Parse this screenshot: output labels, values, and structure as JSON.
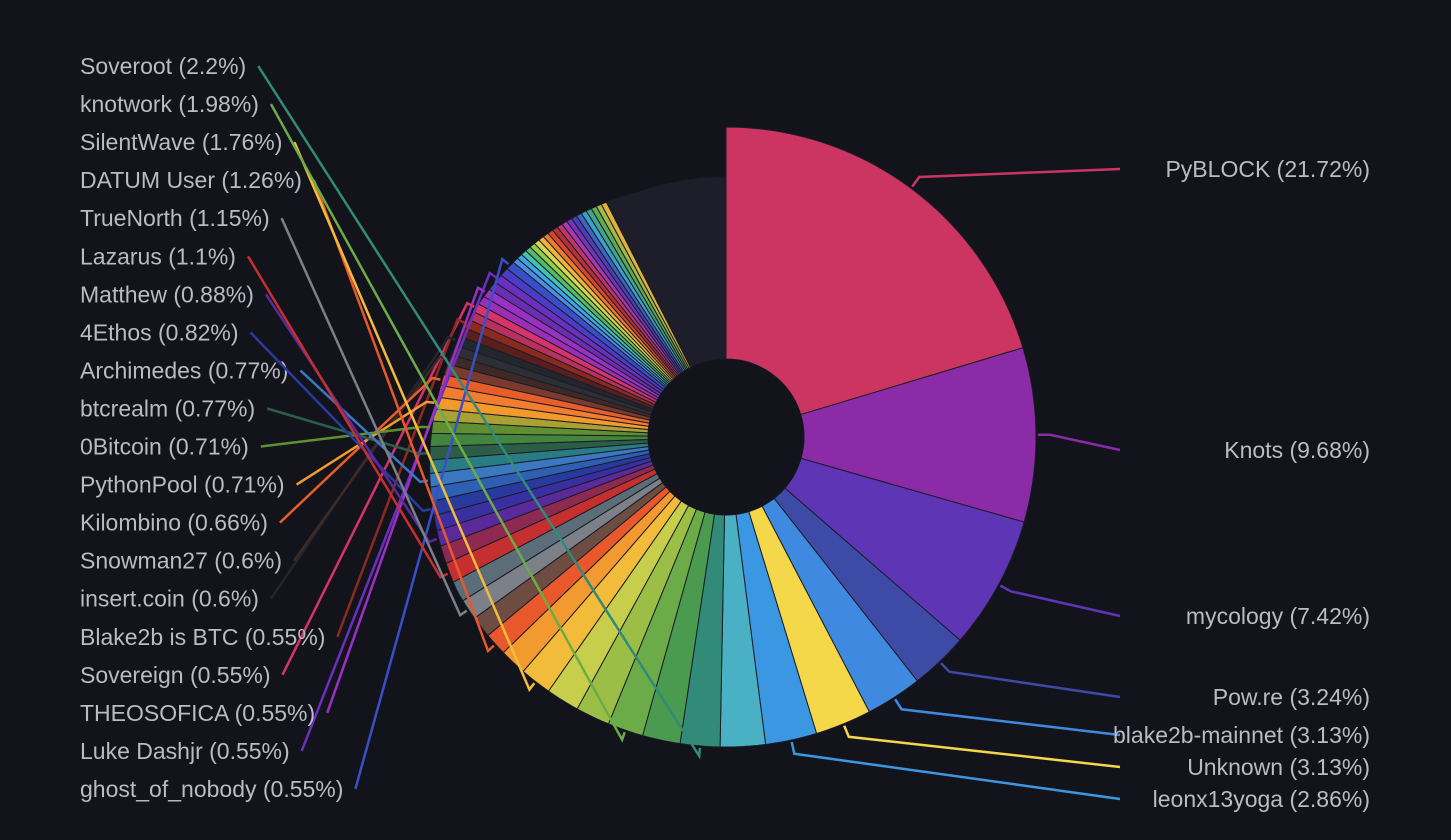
{
  "chart_data": {
    "type": "pie",
    "style": "donut",
    "colors": {
      "background": "#12131b",
      "label_text": "#b9bcc4",
      "slice_border": "#1b1c25",
      "other_slice": "#1d1e2a"
    },
    "labeled_slices": [
      {
        "name": "PyBLOCK",
        "pct_label": "21.72%",
        "value": 21.72,
        "color": "#cc3561"
      },
      {
        "name": "Knots",
        "pct_label": "9.68%",
        "value": 9.68,
        "color": "#8b2ba8"
      },
      {
        "name": "mycology",
        "pct_label": "7.42%",
        "value": 7.42,
        "color": "#5e35b5"
      },
      {
        "name": "Pow.re",
        "pct_label": "3.24%",
        "value": 3.24,
        "color": "#3e4ba6"
      },
      {
        "name": "blake2b-mainnet",
        "pct_label": "3.13%",
        "value": 3.13,
        "color": "#3f8ae0"
      },
      {
        "name": "Unknown",
        "pct_label": "3.13%",
        "value": 3.13,
        "color": "#f5d84a"
      },
      {
        "name": "leonx13yoga",
        "pct_label": "2.86%",
        "value": 2.86,
        "color": "#3c97e3"
      },
      {
        "name": "",
        "pct_label": "",
        "value": 2.5,
        "color": "#4ab1c4"
      },
      {
        "name": "Soveroot",
        "pct_label": "2.2%",
        "value": 2.2,
        "color": "#328a79"
      },
      {
        "name": "",
        "pct_label": "",
        "value": 2.1,
        "color": "#4a9b4f"
      },
      {
        "name": "knotwork",
        "pct_label": "1.98%",
        "value": 1.98,
        "color": "#6cac48"
      },
      {
        "name": "",
        "pct_label": "",
        "value": 1.9,
        "color": "#9bbf46"
      },
      {
        "name": "",
        "pct_label": "",
        "value": 1.85,
        "color": "#c7ce4c"
      },
      {
        "name": "SilentWave",
        "pct_label": "1.76%",
        "value": 1.76,
        "color": "#f2bb3a"
      },
      {
        "name": "",
        "pct_label": "",
        "value": 1.5,
        "color": "#f29a30"
      },
      {
        "name": "DATUM User",
        "pct_label": "1.26%",
        "value": 1.26,
        "color": "#e8582b"
      },
      {
        "name": "",
        "pct_label": "",
        "value": 1.2,
        "color": "#6d4c41"
      },
      {
        "name": "TrueNorth",
        "pct_label": "1.15%",
        "value": 1.15,
        "color": "#7b8089"
      },
      {
        "name": "",
        "pct_label": "",
        "value": 1.15,
        "color": "#5b6d78"
      },
      {
        "name": "Lazarus",
        "pct_label": "1.1%",
        "value": 1.1,
        "color": "#c62f2f"
      },
      {
        "name": "",
        "pct_label": "",
        "value": 1.0,
        "color": "#8e2a52"
      },
      {
        "name": "Matthew",
        "pct_label": "0.88%",
        "value": 0.88,
        "color": "#5b2a9a"
      },
      {
        "name": "",
        "pct_label": "",
        "value": 0.85,
        "color": "#3a2fa0"
      },
      {
        "name": "4Ethos",
        "pct_label": "0.82%",
        "value": 0.82,
        "color": "#283a9e"
      },
      {
        "name": "",
        "pct_label": "",
        "value": 0.8,
        "color": "#2e5fb3"
      },
      {
        "name": "Archimedes",
        "pct_label": "0.77%",
        "value": 0.77,
        "color": "#3a78c2"
      },
      {
        "name": "",
        "pct_label": "",
        "value": 0.77,
        "color": "#2a7c84"
      },
      {
        "name": "btcrealm",
        "pct_label": "0.77%",
        "value": 0.77,
        "color": "#2c5e47"
      },
      {
        "name": "",
        "pct_label": "",
        "value": 0.75,
        "color": "#43853f"
      },
      {
        "name": "0Bitcoin",
        "pct_label": "0.71%",
        "value": 0.71,
        "color": "#5f8f31"
      },
      {
        "name": "",
        "pct_label": "",
        "value": 0.71,
        "color": "#a9a134"
      },
      {
        "name": "PythonPool",
        "pct_label": "0.71%",
        "value": 0.71,
        "color": "#f39a2d"
      },
      {
        "name": "",
        "pct_label": "",
        "value": 0.7,
        "color": "#f27c2f"
      },
      {
        "name": "Kilombino",
        "pct_label": "0.66%",
        "value": 0.66,
        "color": "#e85d2a"
      },
      {
        "name": "",
        "pct_label": "",
        "value": 0.65,
        "color": "#7a3a2e"
      },
      {
        "name": "Snowman27",
        "pct_label": "0.6%",
        "value": 0.6,
        "color": "#3d2a26"
      },
      {
        "name": "",
        "pct_label": "",
        "value": 0.6,
        "color": "#2c2f36"
      },
      {
        "name": "insert.coin",
        "pct_label": "0.6%",
        "value": 0.6,
        "color": "#23262d"
      },
      {
        "name": "",
        "pct_label": "",
        "value": 0.58,
        "color": "#5a1e1e"
      },
      {
        "name": "Blake2b is BTC",
        "pct_label": "0.55%",
        "value": 0.55,
        "color": "#8c2a20"
      },
      {
        "name": "",
        "pct_label": "",
        "value": 0.55,
        "color": "#b8305e"
      },
      {
        "name": "Sovereign",
        "pct_label": "0.55%",
        "value": 0.55,
        "color": "#d6336c"
      },
      {
        "name": "",
        "pct_label": "",
        "value": 0.55,
        "color": "#9c2fb8"
      },
      {
        "name": "THEOSOFICA",
        "pct_label": "0.55%",
        "value": 0.55,
        "color": "#9a30c4"
      },
      {
        "name": "",
        "pct_label": "",
        "value": 0.55,
        "color": "#6a2fb0"
      },
      {
        "name": "Luke Dashjr",
        "pct_label": "0.55%",
        "value": 0.55,
        "color": "#6b2fbf"
      },
      {
        "name": "",
        "pct_label": "",
        "value": 0.55,
        "color": "#4b3cc8"
      },
      {
        "name": "ghost_of_nobody",
        "pct_label": "0.55%",
        "value": 0.55,
        "color": "#3a4fc7"
      }
    ],
    "small_slice_colors": [
      "#4a8fe0",
      "#3ba7e6",
      "#44c3b0",
      "#55b96a",
      "#8fcd4c",
      "#d8d64c",
      "#f1b43a",
      "#ee7a2e",
      "#d9462c",
      "#b2323a",
      "#c2336d",
      "#a737b6",
      "#7234b8",
      "#4a3fb5",
      "#3f63c2",
      "#3aa1c9",
      "#41a58c",
      "#5faa4f",
      "#a4b944",
      "#e0b23d"
    ],
    "other_value": 8.0
  }
}
